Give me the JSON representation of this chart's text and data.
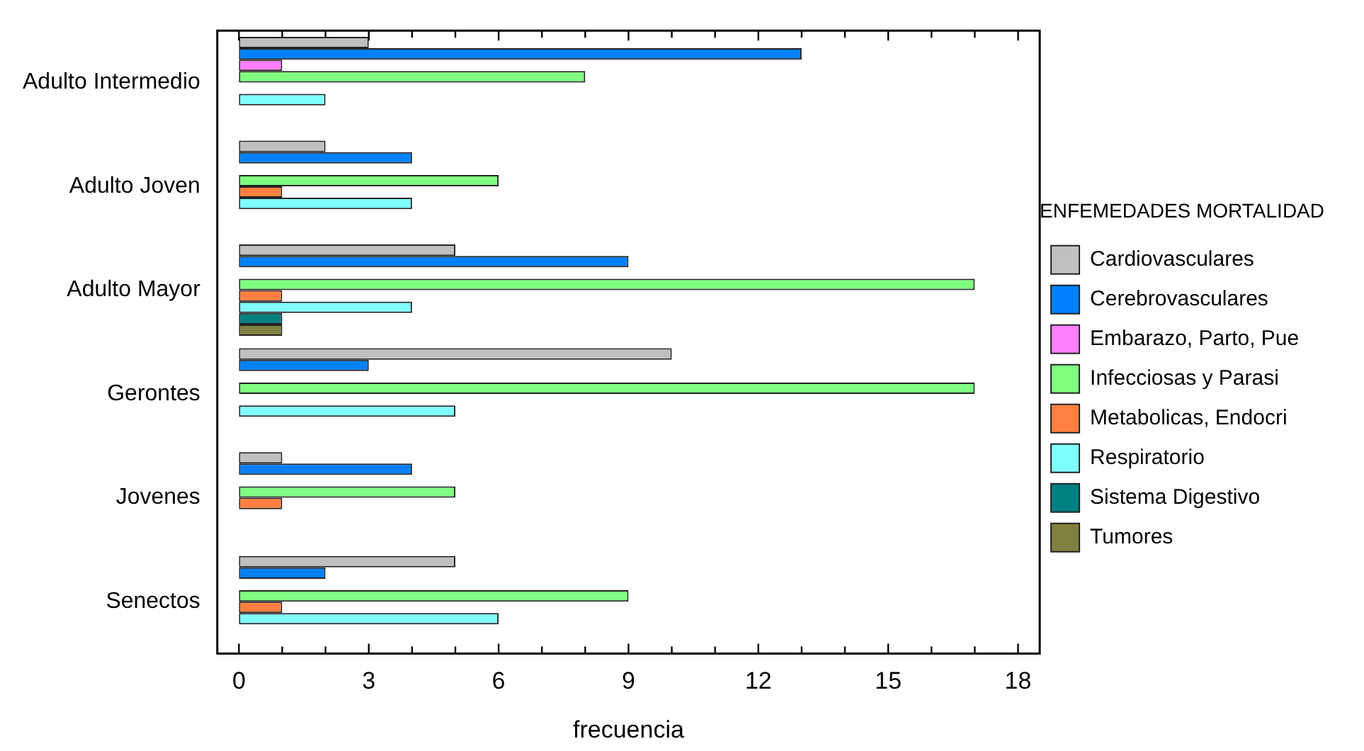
{
  "chart_data": {
    "type": "bar",
    "orientation": "horizontal",
    "xlabel": "frecuencia",
    "legend_title": "ENFEMEDADES MORTALIDAD",
    "legend": "right",
    "categories": [
      "Adulto Intermedio",
      "Adulto Joven",
      "Adulto Mayor",
      "Gerontes",
      "Jovenes",
      "Senectos"
    ],
    "series": [
      {
        "name": "Cardiovasculares",
        "color": "#c0c0c0",
        "values": [
          3,
          2,
          5,
          10,
          1,
          5
        ]
      },
      {
        "name": "Cerebrovasculares",
        "color": "#0080ff",
        "values": [
          13,
          4,
          9,
          3,
          4,
          2
        ]
      },
      {
        "name": "Embarazo, Parto, Pue",
        "color": "#ff80ff",
        "values": [
          1,
          0,
          0,
          0,
          0,
          0
        ]
      },
      {
        "name": "Infecciosas y Parasi",
        "color": "#80ff80",
        "values": [
          8,
          6,
          17,
          17,
          5,
          9
        ]
      },
      {
        "name": "Metabolicas, Endocri",
        "color": "#ff8040",
        "values": [
          0,
          1,
          1,
          0,
          1,
          1
        ]
      },
      {
        "name": "Respiratorio",
        "color": "#80ffff",
        "values": [
          2,
          4,
          4,
          5,
          0,
          6
        ]
      },
      {
        "name": "Sistema Digestivo",
        "color": "#008080",
        "values": [
          0,
          0,
          1,
          0,
          0,
          0
        ]
      },
      {
        "name": "Tumores",
        "color": "#808040",
        "values": [
          0,
          0,
          1,
          0,
          0,
          0
        ]
      }
    ],
    "xlim": [
      -0.5,
      18.5
    ],
    "xticks": [
      0,
      {
        "value": 1,
        "label": null
      },
      {
        "value": 2,
        "label": null
      },
      3,
      {
        "value": 4,
        "label": null
      },
      {
        "value": 5,
        "label": null
      },
      6,
      {
        "value": 7,
        "label": null
      },
      {
        "value": 8,
        "label": null
      },
      9,
      {
        "value": 10,
        "label": null
      },
      {
        "value": 11,
        "label": null
      },
      12,
      {
        "value": 13,
        "label": null
      },
      {
        "value": 14,
        "label": null
      },
      15,
      {
        "value": 16,
        "label": null
      },
      {
        "value": 17,
        "label": null
      },
      18
    ],
    "grid": false
  }
}
